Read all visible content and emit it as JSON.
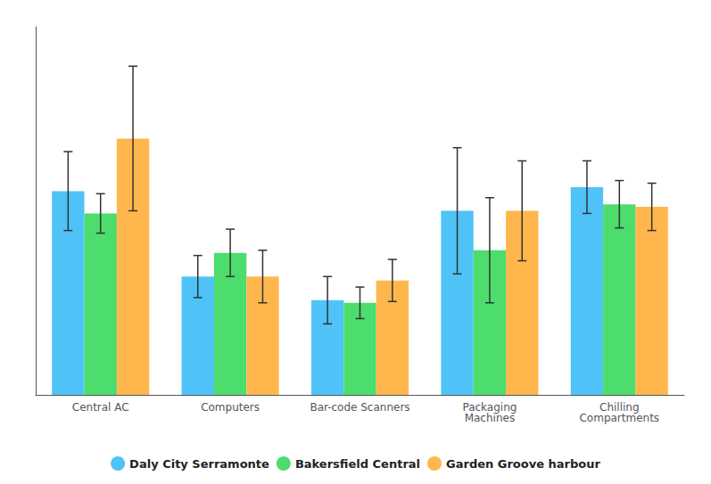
{
  "chart_data": {
    "type": "bar",
    "categories": [
      "Central AC",
      "Computers",
      "Bar-code Scanners",
      "Packaging\nMachines",
      "Chilling\nCompartments"
    ],
    "series": [
      {
        "name": "Daly City Serramonte",
        "color": "#4FC3F7",
        "values": [
          155,
          90,
          72,
          140,
          158
        ],
        "errors": [
          30,
          16,
          18,
          48,
          20
        ]
      },
      {
        "name": "Bakersfield Central",
        "color": "#4CDD6C",
        "values": [
          138,
          108,
          70,
          110,
          145
        ],
        "errors": [
          15,
          18,
          12,
          40,
          18
        ]
      },
      {
        "name": "Garden Groove harbour",
        "color": "#FFB74D",
        "values": [
          195,
          90,
          87,
          140,
          143
        ],
        "errors": [
          55,
          20,
          16,
          38,
          18
        ]
      }
    ],
    "ylim": [
      0,
      280
    ],
    "grid": false,
    "tick_labels": "x",
    "legend": "bottom"
  }
}
